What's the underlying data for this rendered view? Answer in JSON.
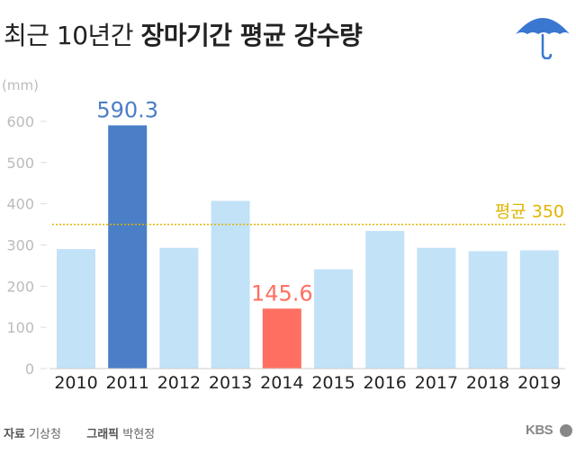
{
  "title": {
    "light": "최근 10년간",
    "bold": "장마기간 평균 강수량"
  },
  "unit_label": "(mm)",
  "footer": {
    "source_label": "자료",
    "source_value": "기상청",
    "graphic_label": "그래픽",
    "graphic_value": "박현정"
  },
  "logo_text": "KBS",
  "icons": {
    "umbrella": "umbrella-icon"
  },
  "colors": {
    "bar_default": "#c2e2f7",
    "bar_max": "#4a7ec7",
    "bar_min": "#ff6f61",
    "average_line": "#e0b400",
    "axis_text": "#bbbbbb"
  },
  "chart_data": {
    "type": "bar",
    "title": "최근 10년간 장마기간 평균 강수량",
    "ylabel": "(mm)",
    "categories": [
      "2010",
      "2011",
      "2012",
      "2013",
      "2014",
      "2015",
      "2016",
      "2017",
      "2018",
      "2019"
    ],
    "values": [
      290,
      590.3,
      293,
      407,
      145.6,
      241,
      334,
      293,
      285,
      287
    ],
    "ylim": [
      0,
      600
    ],
    "yticks": [
      0,
      100,
      200,
      300,
      400,
      500,
      600
    ],
    "data_labels": [
      {
        "category": "2011",
        "text": "590.3",
        "color": "#4a7ec7"
      },
      {
        "category": "2014",
        "text": "145.6",
        "color": "#ff6f61"
      }
    ],
    "highlights": {
      "2011": "#4a7ec7",
      "2014": "#ff6f61"
    },
    "reference_line": {
      "value": 350,
      "label": "평균 350",
      "style": "dotted"
    },
    "grid": false
  }
}
